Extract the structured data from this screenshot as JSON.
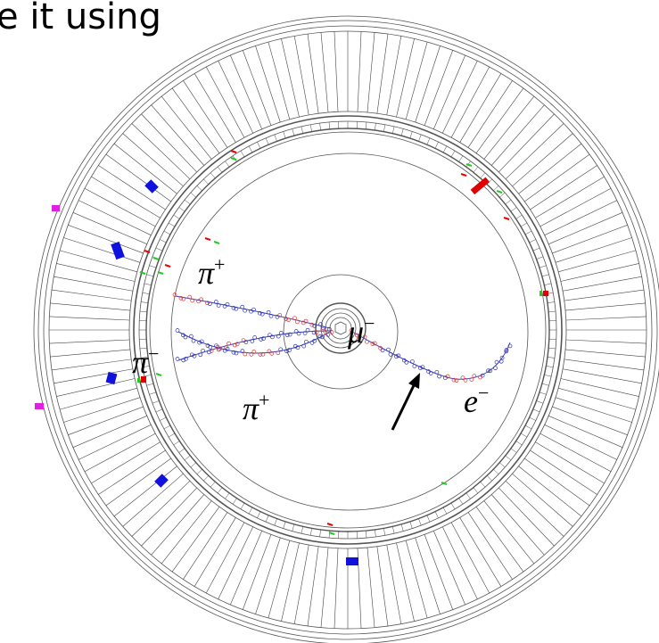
{
  "header": {
    "text": "e it using"
  },
  "labels": [
    {
      "symbol": "π",
      "charge": "+"
    },
    {
      "symbol": "π",
      "charge": "−"
    },
    {
      "symbol": "π",
      "charge": "+"
    },
    {
      "symbol": "μ",
      "charge": "−"
    },
    {
      "symbol": "e",
      "charge": "−"
    }
  ]
}
